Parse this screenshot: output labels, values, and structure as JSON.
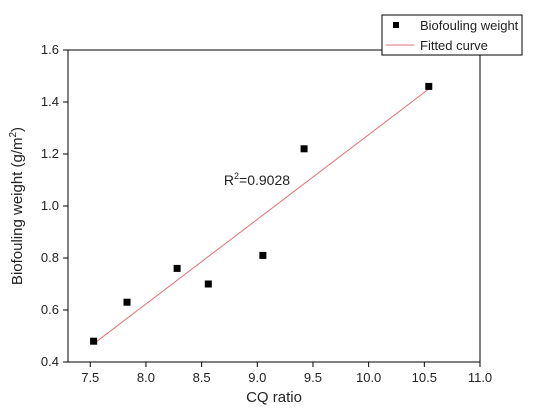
{
  "chart_data": {
    "type": "scatter",
    "xlabel": "CQ ratio",
    "ylabel_main": "Biofouling weight (g/m",
    "ylabel_sup": "2",
    "ylabel_end": ")",
    "xlim": [
      7.3,
      11.0
    ],
    "ylim": [
      0.4,
      1.6
    ],
    "xticks": [
      "7.5",
      "8.0",
      "8.5",
      "9.0",
      "9.5",
      "10.0",
      "10.5",
      "11.0"
    ],
    "yticks": [
      "0.4",
      "0.6",
      "0.8",
      "1.0",
      "1.2",
      "1.4",
      "1.6"
    ],
    "series": [
      {
        "name": "Biofouling weight",
        "points": [
          {
            "x": 7.53,
            "y": 0.48
          },
          {
            "x": 7.83,
            "y": 0.63
          },
          {
            "x": 8.28,
            "y": 0.76
          },
          {
            "x": 8.56,
            "y": 0.7
          },
          {
            "x": 9.05,
            "y": 0.81
          },
          {
            "x": 9.42,
            "y": 1.22
          },
          {
            "x": 10.54,
            "y": 1.46
          }
        ],
        "color": "#000000"
      }
    ],
    "fit": {
      "name": "Fitted curve",
      "x": [
        7.53,
        10.54
      ],
      "y": [
        0.47,
        1.45
      ],
      "color": "#e07070"
    },
    "annotation": {
      "prefix": "R",
      "sup": "2",
      "value": "=0.9028",
      "x": 8.7,
      "y": 1.08
    },
    "legend_position": "top-right"
  }
}
